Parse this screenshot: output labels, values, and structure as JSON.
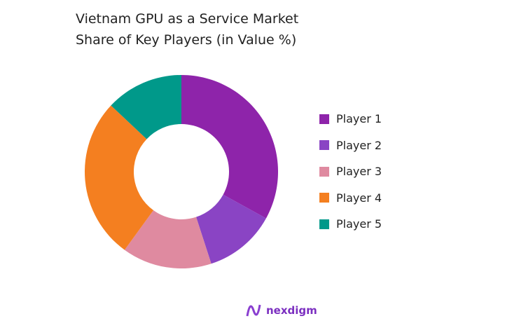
{
  "chart_data": {
    "type": "pie",
    "donut": true,
    "title": "Vietnam GPU as a Service Market Share of Key Players (in Value %)",
    "categories": [
      "Player 1",
      "Player 2",
      "Player 3",
      "Player 4",
      "Player 5"
    ],
    "values": [
      33,
      12,
      15,
      27,
      13
    ],
    "colors": [
      "#8e24aa",
      "#8a44c4",
      "#df8aa0",
      "#f47f20",
      "#00998a"
    ],
    "legend_position": "right"
  },
  "logo": {
    "text": "nexdigm"
  }
}
